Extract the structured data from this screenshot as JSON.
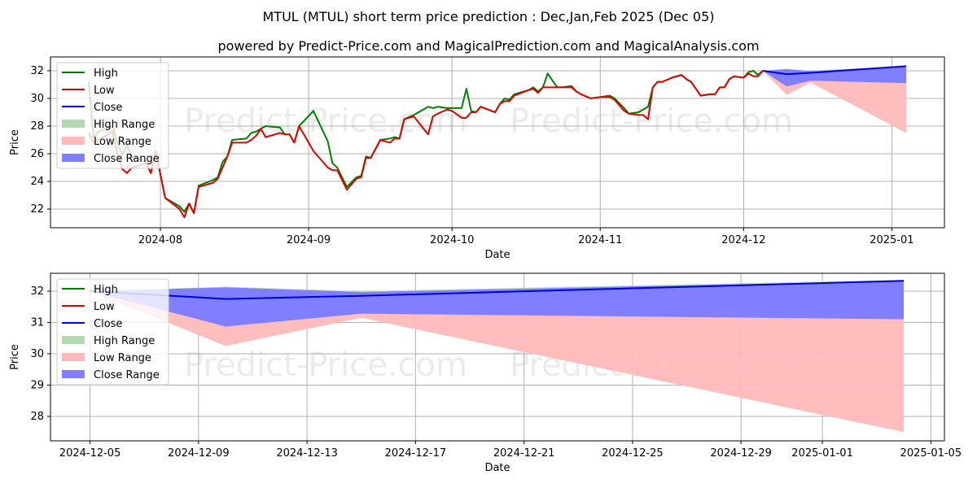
{
  "title": "MTUL (MTUL) short term price prediction : Dec,Jan,Feb 2025 (Dec 05)",
  "subtitle": "powered by Predict-Price.com and MagicalPrediction.com and MagicalAnalysis.com",
  "watermark": "Predict-Price.com",
  "legend": [
    "High",
    "Low",
    "Close",
    "High Range",
    "Low Range",
    "Close Range"
  ],
  "colors": {
    "high": "#008000",
    "low": "#e00000",
    "close": "#0000dd",
    "high_range": "#b3d9b3",
    "low_range": "#ffb9b9",
    "close_range": "#7f7fff"
  },
  "chart_data": [
    {
      "type": "line",
      "xlabel": "Date",
      "ylabel": "Price",
      "xlim": [
        "2024-07-09",
        "2025-01-12"
      ],
      "ylim": [
        20.65,
        33.0
      ],
      "yticks": [
        22,
        24,
        26,
        28,
        30,
        32
      ],
      "xticks": [
        {
          "date": "2024-08-01",
          "label": "2024-08"
        },
        {
          "date": "2024-09-01",
          "label": "2024-09"
        },
        {
          "date": "2024-10-01",
          "label": "2024-10"
        },
        {
          "date": "2024-11-01",
          "label": "2024-11"
        },
        {
          "date": "2024-12-01",
          "label": "2024-12"
        },
        {
          "date": "2025-01-01",
          "label": "2025-01"
        }
      ],
      "grid": true,
      "legend_position": "top-left",
      "history": [
        [
          "2024-07-17",
          31.2,
          27.5
        ],
        [
          "2024-07-18",
          27.2,
          26.8
        ],
        [
          "2024-07-19",
          27.6,
          27.0
        ],
        [
          "2024-07-22",
          28.0,
          27.6
        ],
        [
          "2024-07-23",
          26.8,
          26.0
        ],
        [
          "2024-07-24",
          25.9,
          24.9
        ],
        [
          "2024-07-25",
          26.6,
          24.6
        ],
        [
          "2024-07-26",
          25.8,
          25.0
        ],
        [
          "2024-07-29",
          25.4,
          25.3
        ],
        [
          "2024-07-30",
          24.6,
          24.6
        ],
        [
          "2024-07-31",
          26.2,
          26.2
        ],
        [
          "2024-08-01",
          24.5,
          24.5
        ],
        [
          "2024-08-02",
          22.8,
          22.8
        ],
        [
          "2024-08-05",
          22.2,
          22.0
        ],
        [
          "2024-08-06",
          21.8,
          21.4
        ],
        [
          "2024-08-07",
          22.4,
          22.4
        ],
        [
          "2024-08-08",
          21.7,
          21.7
        ],
        [
          "2024-08-09",
          23.7,
          23.6
        ],
        [
          "2024-08-12",
          24.1,
          23.9
        ],
        [
          "2024-08-13",
          24.3,
          24.2
        ],
        [
          "2024-08-14",
          25.4,
          25.0
        ],
        [
          "2024-08-15",
          25.8,
          25.8
        ],
        [
          "2024-08-16",
          27.0,
          26.8
        ],
        [
          "2024-08-19",
          27.1,
          26.8
        ],
        [
          "2024-08-20",
          27.5,
          27.0
        ],
        [
          "2024-08-21",
          27.6,
          27.3
        ],
        [
          "2024-08-22",
          27.8,
          27.8
        ],
        [
          "2024-08-23",
          28.0,
          27.2
        ],
        [
          "2024-08-26",
          27.9,
          27.5
        ],
        [
          "2024-08-27",
          27.4,
          27.4
        ],
        [
          "2024-08-28",
          27.4,
          27.4
        ],
        [
          "2024-08-29",
          26.8,
          26.8
        ],
        [
          "2024-08-30",
          28.0,
          28.0
        ],
        [
          "2024-09-02",
          29.1,
          26.2
        ],
        [
          "2024-09-05",
          26.9,
          25.0
        ],
        [
          "2024-09-06",
          25.3,
          24.8
        ],
        [
          "2024-09-07",
          25.0,
          24.8
        ],
        [
          "2024-09-09",
          23.6,
          23.4
        ],
        [
          "2024-09-11",
          24.3,
          24.2
        ],
        [
          "2024-09-12",
          24.4,
          24.3
        ],
        [
          "2024-09-13",
          25.8,
          25.7
        ],
        [
          "2024-09-14",
          25.7,
          25.7
        ],
        [
          "2024-09-16",
          27.0,
          27.0
        ],
        [
          "2024-09-18",
          27.1,
          26.8
        ],
        [
          "2024-09-19",
          27.2,
          27.1
        ],
        [
          "2024-09-20",
          27.1,
          27.1
        ],
        [
          "2024-09-21",
          28.5,
          28.5
        ],
        [
          "2024-09-23",
          28.8,
          28.7
        ],
        [
          "2024-09-26",
          29.4,
          27.4
        ],
        [
          "2024-09-27",
          29.3,
          28.7
        ],
        [
          "2024-09-28",
          29.4,
          28.9
        ],
        [
          "2024-09-30",
          29.3,
          29.2
        ],
        [
          "2024-10-01",
          29.3,
          29.1
        ],
        [
          "2024-10-03",
          29.3,
          28.6
        ],
        [
          "2024-10-04",
          30.7,
          28.6
        ],
        [
          "2024-10-05",
          29.1,
          29.0
        ],
        [
          "2024-10-06",
          29.0,
          29.0
        ],
        [
          "2024-10-07",
          29.4,
          29.4
        ],
        [
          "2024-10-10",
          29.0,
          29.0
        ],
        [
          "2024-10-11",
          29.6,
          29.6
        ],
        [
          "2024-10-12",
          30.0,
          29.8
        ],
        [
          "2024-10-13",
          29.9,
          29.8
        ],
        [
          "2024-10-14",
          30.3,
          30.2
        ],
        [
          "2024-10-17",
          30.6,
          30.6
        ],
        [
          "2024-10-18",
          30.8,
          30.7
        ],
        [
          "2024-10-19",
          30.5,
          30.4
        ],
        [
          "2024-10-20",
          30.8,
          30.8
        ],
        [
          "2024-10-21",
          31.8,
          30.8
        ],
        [
          "2024-10-23",
          30.8,
          30.8
        ],
        [
          "2024-10-24",
          30.8,
          30.8
        ],
        [
          "2024-10-26",
          30.9,
          30.8
        ],
        [
          "2024-10-27",
          30.5,
          30.5
        ],
        [
          "2024-10-28",
          30.3,
          30.3
        ],
        [
          "2024-10-30",
          30.0,
          30.0
        ],
        [
          "2024-11-01",
          30.1,
          30.1
        ],
        [
          "2024-11-03",
          30.2,
          30.1
        ],
        [
          "2024-11-04",
          30.0,
          29.9
        ],
        [
          "2024-11-06",
          29.3,
          29.1
        ],
        [
          "2024-11-07",
          28.9,
          28.9
        ],
        [
          "2024-11-09",
          29.0,
          28.8
        ],
        [
          "2024-11-10",
          29.2,
          28.8
        ],
        [
          "2024-11-11",
          29.4,
          28.5
        ],
        [
          "2024-11-12",
          30.8,
          30.8
        ],
        [
          "2024-11-13",
          31.2,
          31.2
        ],
        [
          "2024-11-14",
          31.2,
          31.2
        ],
        [
          "2024-11-16",
          31.5,
          31.5
        ],
        [
          "2024-11-18",
          31.7,
          31.7
        ],
        [
          "2024-11-19",
          31.4,
          31.4
        ],
        [
          "2024-11-20",
          31.2,
          31.2
        ],
        [
          "2024-11-22",
          30.2,
          30.2
        ],
        [
          "2024-11-24",
          30.3,
          30.3
        ],
        [
          "2024-11-25",
          30.3,
          30.3
        ],
        [
          "2024-11-26",
          30.8,
          30.8
        ],
        [
          "2024-11-27",
          30.8,
          30.8
        ],
        [
          "2024-11-28",
          31.4,
          31.4
        ],
        [
          "2024-11-29",
          31.6,
          31.6
        ],
        [
          "2024-12-01",
          31.5,
          31.5
        ],
        [
          "2024-12-02",
          31.9,
          31.8
        ],
        [
          "2024-12-03",
          32.0,
          31.6
        ],
        [
          "2024-12-04",
          31.7,
          31.6
        ],
        [
          "2024-12-05",
          32.0,
          32.0
        ]
      ]
    },
    {
      "type": "area",
      "xlabel": "Date",
      "ylabel": "Price",
      "xlim": [
        "2024-12-03T13:00",
        "2025-01-05T12:00"
      ],
      "ylim": [
        27.22,
        32.57
      ],
      "yticks": [
        28,
        29,
        30,
        31,
        32
      ],
      "xticks": [
        {
          "date": "2024-12-05",
          "label": "2024-12-05"
        },
        {
          "date": "2024-12-09",
          "label": "2024-12-09"
        },
        {
          "date": "2024-12-13",
          "label": "2024-12-13"
        },
        {
          "date": "2024-12-17",
          "label": "2024-12-17"
        },
        {
          "date": "2024-12-21",
          "label": "2024-12-21"
        },
        {
          "date": "2024-12-25",
          "label": "2024-12-25"
        },
        {
          "date": "2024-12-29",
          "label": "2024-12-29"
        },
        {
          "date": "2025-01-01",
          "label": "2025-01-01"
        },
        {
          "date": "2025-01-05",
          "label": "2025-01-05"
        }
      ],
      "grid": true,
      "legend_position": "top-left"
    }
  ],
  "prediction": {
    "dates": [
      "2024-12-05",
      "2024-12-10",
      "2024-12-15",
      "2025-01-04"
    ],
    "close": [
      32.0,
      31.75,
      31.85,
      32.33
    ],
    "high_range": {
      "low": [
        32.0,
        31.75,
        31.85,
        32.33
      ],
      "high": [
        32.0,
        32.14,
        32.0,
        32.36
      ]
    },
    "low_range": {
      "low": [
        32.0,
        30.25,
        31.15,
        27.5
      ],
      "high": [
        32.0,
        31.3,
        31.3,
        31.1
      ]
    },
    "close_range": {
      "low": [
        32.0,
        30.87,
        31.28,
        31.1
      ],
      "high": [
        32.0,
        32.12,
        31.97,
        32.33
      ]
    }
  }
}
